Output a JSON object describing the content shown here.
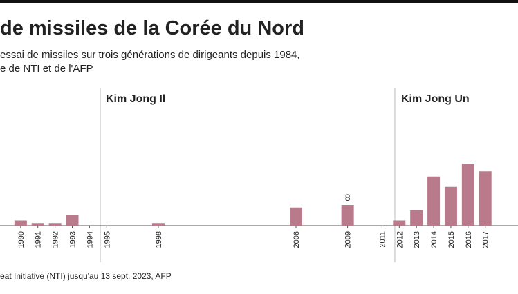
{
  "chart_data": {
    "type": "bar",
    "title": "de missiles de la Corée du Nord",
    "subtitle": [
      "essai de missiles sur trois générations de dirigeants depuis 1984,",
      "e de NTI et de l'AFP"
    ],
    "annotations": [
      "Kim Jong Il",
      "Kim Jong Un"
    ],
    "source": "eat Initiative (NTI) jusqu'au 13 sept. 2023, AFP",
    "x": [
      1990,
      1991,
      1992,
      1993,
      1994,
      1995,
      1998,
      2006,
      2009,
      2011,
      2012,
      2013,
      2014,
      2015,
      2016,
      2017
    ],
    "values": [
      2,
      1,
      1,
      4,
      0,
      0,
      1,
      7,
      8,
      0,
      2,
      6,
      19,
      15,
      24,
      21
    ],
    "color": "#b97a8c",
    "xlim": [
      1988.8,
      2018.9
    ],
    "ylim": [
      0,
      40
    ]
  }
}
